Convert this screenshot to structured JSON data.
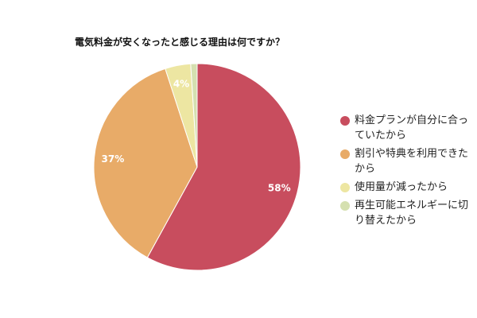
{
  "chart_data": {
    "type": "pie",
    "title": "電気料金が安くなったと感じる理由は何ですか？",
    "slices": [
      {
        "name": "料金プランが自分に合っていたから",
        "value": 58,
        "label": "58%",
        "color": "#c84d5e"
      },
      {
        "name": "割引や特典を利用できたから",
        "value": 37,
        "label": "37%",
        "color": "#e8ab68"
      },
      {
        "name": "使用量が減ったから",
        "value": 4,
        "label": "4%",
        "color": "#ede6a2"
      },
      {
        "name": "再生可能エネルギーに切り替えたから",
        "value": 1,
        "label": "",
        "color": "#d5e0b0"
      }
    ],
    "legend_position": "right"
  }
}
